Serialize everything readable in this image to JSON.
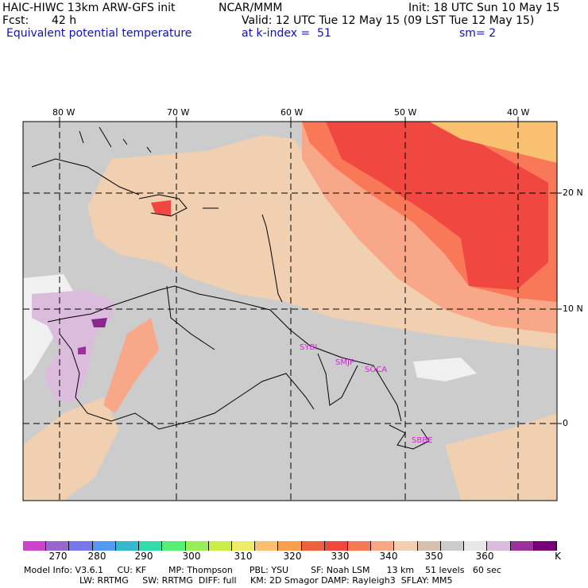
{
  "header": {
    "model_title": "HAIC-HIWC 13km ARW-GFS init",
    "org": "NCAR/MMM",
    "init": "Init: 18 UTC Sun 10 May 15",
    "fcst_label": "Fcst:",
    "fcst_value": "42 h",
    "valid": "Valid: 12 UTC Tue 12 May 15 (09 LST Tue 12 May 15)",
    "field": "Equivalent potential temperature",
    "level": "at k-index =  51",
    "smoothing": "sm= 2"
  },
  "map": {
    "lon_labels": [
      "80 W",
      "70 W",
      "60 W",
      "50 W",
      "40 W"
    ],
    "lat_labels": [
      "20 N",
      "10 N",
      "0"
    ],
    "stations": [
      "SYBI",
      "SMJP",
      "SOCA",
      "SBBE"
    ],
    "colors": {
      "ocean_low": "#cccccc",
      "light": "#f0d0b0",
      "salmon": "#f8a888",
      "orange_red": "#f87858",
      "red": "#f04840",
      "peach": "#f8c070",
      "white": "#f0f0f0",
      "lavender": "#dcbcdc",
      "purple": "#882890"
    }
  },
  "colorbar": {
    "colors": [
      "#cc44cc",
      "#9966cc",
      "#7777ee",
      "#5599ee",
      "#33bbcc",
      "#33ddaa",
      "#55ee77",
      "#99ee55",
      "#ccee44",
      "#eeee66",
      "#f8c070",
      "#f8a050",
      "#f06040",
      "#f04840",
      "#f87858",
      "#f8a888",
      "#f0d0b0",
      "#d8c0b0",
      "#cccccc",
      "#e8e8e8",
      "#dcbcdc",
      "#993399",
      "#770077"
    ],
    "labels": [
      "270",
      "280",
      "290",
      "300",
      "310",
      "320",
      "330",
      "340",
      "350",
      "360"
    ],
    "unit": "K"
  },
  "footer": {
    "line1": "Model Info: V3.6.1     CU: KF        MP: Thompson      PBL: YSU        SF: Noah LSM      13 km    51 levels   60 sec",
    "line2": "LW: RRTMG     SW: RRTMG  DIFF: full     KM: 2D Smagor DAMP: Rayleigh3  SFLAY: MM5"
  }
}
